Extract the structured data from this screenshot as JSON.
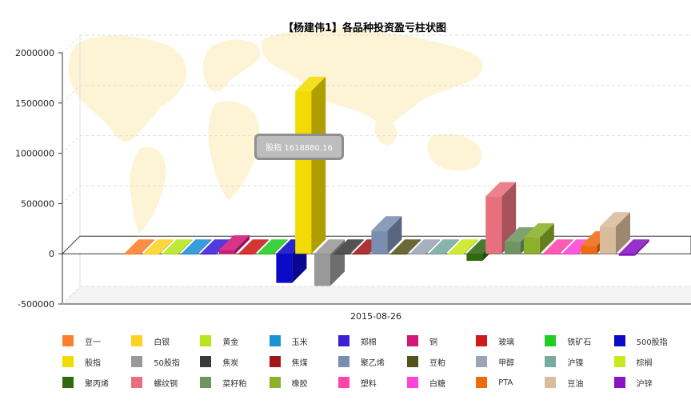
{
  "chart_data": {
    "type": "bar",
    "title": "【杨建伟1】各品种投资盈亏柱状图",
    "xlabel": "",
    "ylabel": "",
    "categories": [
      "2015-08-26"
    ],
    "ylim": [
      -500000,
      2000000
    ],
    "yticks": [
      "2000000",
      "1500000",
      "1000000",
      "500000",
      "0",
      "-500000"
    ],
    "grid": true,
    "legend_position": "bottom",
    "series": [
      {
        "name": "豆一",
        "values": [
          0
        ],
        "color": "#ff7f2a"
      },
      {
        "name": "白银",
        "values": [
          0
        ],
        "color": "#ffd21f"
      },
      {
        "name": "黄金",
        "values": [
          0
        ],
        "color": "#b5e61d"
      },
      {
        "name": "玉米",
        "values": [
          0
        ],
        "color": "#1e90d6"
      },
      {
        "name": "郑棉",
        "values": [
          0
        ],
        "color": "#3a1fd6"
      },
      {
        "name": "铜",
        "values": [
          40000
        ],
        "color": "#d3187a"
      },
      {
        "name": "玻璃",
        "values": [
          0
        ],
        "color": "#d01a1a"
      },
      {
        "name": "铁矿石",
        "values": [
          0
        ],
        "color": "#22cc22"
      },
      {
        "name": "500股指",
        "values": [
          -290000
        ],
        "color": "#0a0ac8"
      },
      {
        "name": "股指",
        "values": [
          1618880.16
        ],
        "color": "#f2db00"
      },
      {
        "name": "50股指",
        "values": [
          -320000
        ],
        "color": "#999999"
      },
      {
        "name": "焦炭",
        "values": [
          0
        ],
        "color": "#3a3a3a"
      },
      {
        "name": "焦煤",
        "values": [
          0
        ],
        "color": "#a01818"
      },
      {
        "name": "聚乙烯",
        "values": [
          230000
        ],
        "color": "#7a8fb0"
      },
      {
        "name": "豆粕",
        "values": [
          0
        ],
        "color": "#55531c"
      },
      {
        "name": "甲醇",
        "values": [
          0
        ],
        "color": "#9aa6b4"
      },
      {
        "name": "沪镍",
        "values": [
          0
        ],
        "color": "#79aaa0"
      },
      {
        "name": "棕榈",
        "values": [
          0
        ],
        "color": "#c9e81e"
      },
      {
        "name": "聚丙烯",
        "values": [
          -70000
        ],
        "color": "#2f6a10"
      },
      {
        "name": "螺纹钢",
        "values": [
          570000
        ],
        "color": "#e8707e"
      },
      {
        "name": "菜籽粕",
        "values": [
          120000
        ],
        "color": "#6e9460"
      },
      {
        "name": "橡胶",
        "values": [
          160000
        ],
        "color": "#8cb02a"
      },
      {
        "name": "塑料",
        "values": [
          0
        ],
        "color": "#ff45aa"
      },
      {
        "name": "白糖",
        "values": [
          0
        ],
        "color": "#ff44d8"
      },
      {
        "name": "PTA",
        "values": [
          80000
        ],
        "color": "#ee6a10"
      },
      {
        "name": "豆油",
        "values": [
          270000
        ],
        "color": "#d8bc9c"
      },
      {
        "name": "沪锌",
        "values": [
          -20000
        ],
        "color": "#8a14c4"
      }
    ],
    "tooltip": "股指 1618880.16"
  }
}
